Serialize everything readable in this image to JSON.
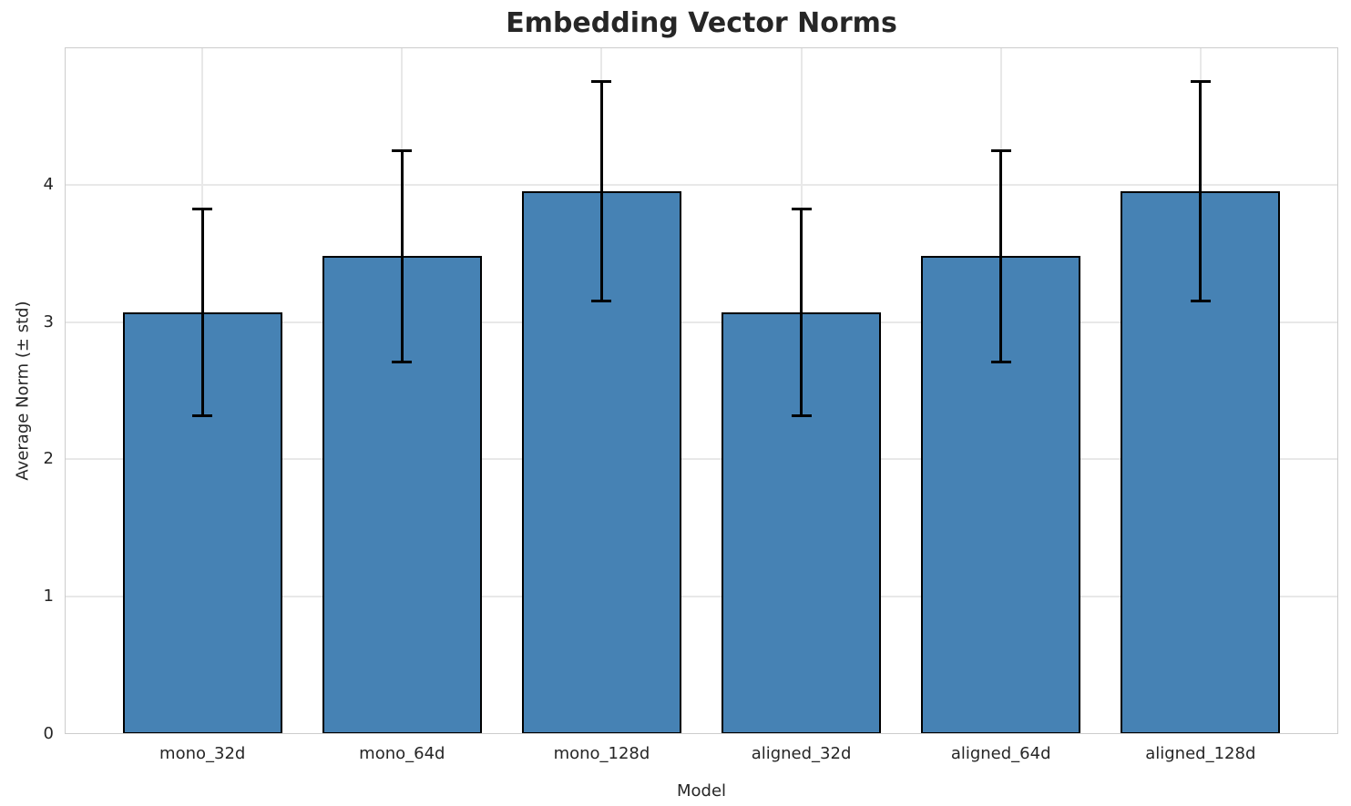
{
  "figure": {
    "title": "Embedding Vector Norms",
    "xlabel": "Model",
    "ylabel": "Average Norm (± std)"
  },
  "chart_data": {
    "type": "bar",
    "title": "Embedding Vector Norms",
    "xlabel": "Model",
    "ylabel": "Average Norm (± std)",
    "categories": [
      "mono_32d",
      "mono_64d",
      "mono_128d",
      "aligned_32d",
      "aligned_64d",
      "aligned_128d"
    ],
    "values": [
      3.07,
      3.48,
      3.95,
      3.07,
      3.48,
      3.95
    ],
    "errors": [
      0.75,
      0.77,
      0.8,
      0.75,
      0.77,
      0.8
    ],
    "error_style": "plus-minus std with caps",
    "ylim": [
      0,
      5
    ],
    "yticks": [
      0,
      1,
      2,
      3,
      4
    ],
    "grid": true,
    "grid_lines": "horizontal at yticks, vertical at category centers",
    "legend": false,
    "colors": {
      "bar_fill": "#4682B4",
      "bar_edge": "#000000",
      "error_bar": "#000000",
      "grid": "#e8e8e8",
      "spine": "#cccccc",
      "text": "#262626"
    }
  }
}
